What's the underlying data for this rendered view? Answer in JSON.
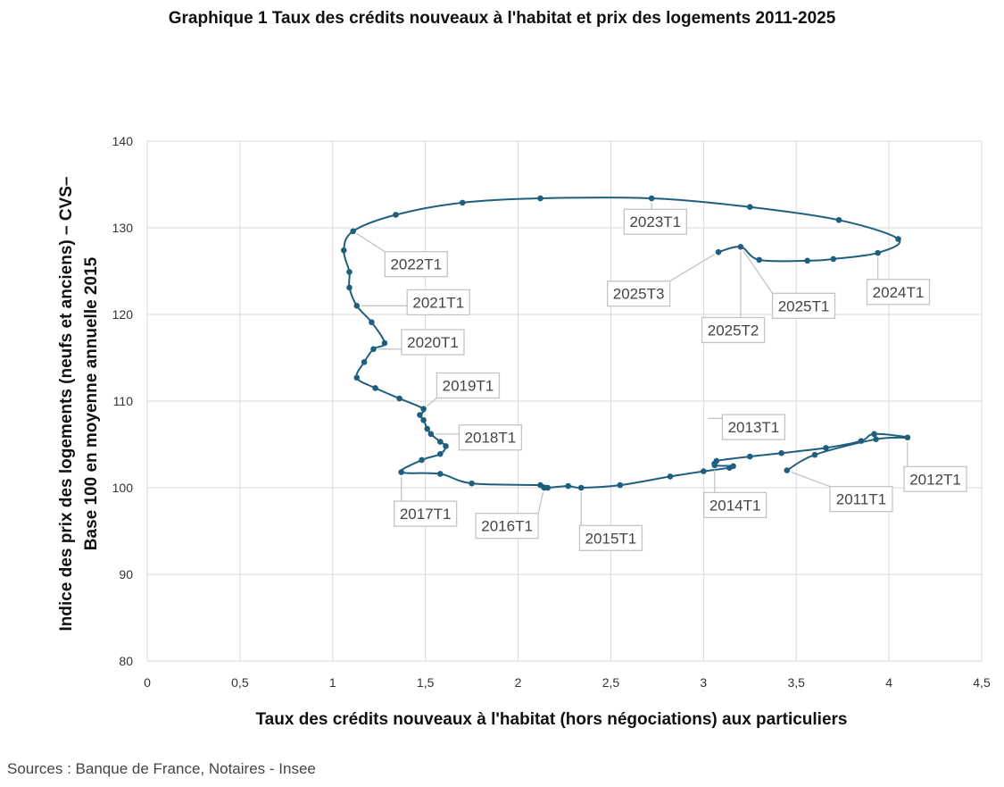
{
  "page": {
    "title": "Graphique 1 Taux des crédits nouveaux à l'habitat et prix des logements 2011-2025",
    "source": "Sources : Banque de France, Notaires - Insee"
  },
  "chart_data": {
    "type": "line",
    "xlabel": "Taux des crédits nouveaux à l'habitat (hors négociations) aux particuliers",
    "ylabel_lines": [
      "Indice des prix des logements (neufs et anciens) – CVS–",
      "Base 100 en moyenne annuelle 2015"
    ],
    "xlim": [
      0,
      4.5
    ],
    "ylim": [
      80,
      140
    ],
    "x_ticks": [
      0,
      0.5,
      1,
      1.5,
      2,
      2.5,
      3,
      3.5,
      4,
      4.5
    ],
    "x_tick_labels": [
      "0",
      "0,5",
      "1",
      "1,5",
      "2",
      "2,5",
      "3",
      "3,5",
      "4",
      "4,5"
    ],
    "y_ticks": [
      80,
      90,
      100,
      110,
      120,
      130,
      140
    ],
    "y_tick_labels": [
      "80",
      "90",
      "100",
      "110",
      "120",
      "130",
      "140"
    ],
    "grid": true,
    "line_color": "#1f5f7e",
    "points": [
      {
        "x": 3.45,
        "y": 102.0
      },
      {
        "x": 3.6,
        "y": 103.8
      },
      {
        "x": 3.93,
        "y": 105.6
      },
      {
        "x": 4.1,
        "y": 105.8
      },
      {
        "x": 3.92,
        "y": 106.2
      },
      {
        "x": 3.85,
        "y": 105.4
      },
      {
        "x": 3.66,
        "y": 104.6
      },
      {
        "x": 3.42,
        "y": 104.0
      },
      {
        "x": 3.25,
        "y": 103.6
      },
      {
        "x": 3.07,
        "y": 103.1
      },
      {
        "x": 3.06,
        "y": 102.6
      },
      {
        "x": 3.16,
        "y": 102.5
      },
      {
        "x": 3.14,
        "y": 102.3
      },
      {
        "x": 3.0,
        "y": 101.9
      },
      {
        "x": 2.82,
        "y": 101.3
      },
      {
        "x": 2.55,
        "y": 100.3
      },
      {
        "x": 2.34,
        "y": 100.0
      },
      {
        "x": 2.27,
        "y": 100.2
      },
      {
        "x": 2.16,
        "y": 100.0
      },
      {
        "x": 2.14,
        "y": 100.0
      },
      {
        "x": 2.12,
        "y": 100.3
      },
      {
        "x": 1.75,
        "y": 100.5
      },
      {
        "x": 1.58,
        "y": 101.6
      },
      {
        "x": 1.37,
        "y": 101.8
      },
      {
        "x": 1.48,
        "y": 103.2
      },
      {
        "x": 1.58,
        "y": 103.9
      },
      {
        "x": 1.61,
        "y": 104.8
      },
      {
        "x": 1.58,
        "y": 105.3
      },
      {
        "x": 1.53,
        "y": 106.2
      },
      {
        "x": 1.51,
        "y": 106.8
      },
      {
        "x": 1.49,
        "y": 107.8
      },
      {
        "x": 1.47,
        "y": 108.4
      },
      {
        "x": 1.49,
        "y": 109.1
      },
      {
        "x": 1.36,
        "y": 110.3
      },
      {
        "x": 1.23,
        "y": 111.5
      },
      {
        "x": 1.13,
        "y": 112.7
      },
      {
        "x": 1.17,
        "y": 114.5
      },
      {
        "x": 1.22,
        "y": 116.0
      },
      {
        "x": 1.28,
        "y": 116.7
      },
      {
        "x": 1.21,
        "y": 119.1
      },
      {
        "x": 1.13,
        "y": 121.0
      },
      {
        "x": 1.09,
        "y": 123.1
      },
      {
        "x": 1.09,
        "y": 124.9
      },
      {
        "x": 1.06,
        "y": 127.4
      },
      {
        "x": 1.11,
        "y": 129.6
      },
      {
        "x": 1.34,
        "y": 131.5
      },
      {
        "x": 1.7,
        "y": 132.9
      },
      {
        "x": 2.12,
        "y": 133.4
      },
      {
        "x": 2.72,
        "y": 133.4
      },
      {
        "x": 3.25,
        "y": 132.4
      },
      {
        "x": 3.73,
        "y": 130.9
      },
      {
        "x": 4.05,
        "y": 128.7
      },
      {
        "x": 3.94,
        "y": 127.1
      },
      {
        "x": 3.7,
        "y": 126.4
      },
      {
        "x": 3.56,
        "y": 126.2
      },
      {
        "x": 3.3,
        "y": 126.3
      },
      {
        "x": 3.2,
        "y": 127.8
      },
      {
        "x": 3.08,
        "y": 127.2
      }
    ],
    "annotations": [
      {
        "text": "2011T1",
        "x": 3.85,
        "y": 98.7,
        "ax": 3.45,
        "ay": 102.0
      },
      {
        "text": "2012T1",
        "x": 4.25,
        "y": 101.0,
        "ax": 4.1,
        "ay": 105.8
      },
      {
        "text": "2013T1",
        "x": 3.27,
        "y": 107.0,
        "ax": 3.0,
        "ay": 108.0
      },
      {
        "text": "2014T1",
        "x": 3.17,
        "y": 98.0,
        "ax": 3.06,
        "ay": 102.6
      },
      {
        "text": "2015T1",
        "x": 2.5,
        "y": 94.2,
        "ax": 2.34,
        "ay": 100.0
      },
      {
        "text": "2016T1",
        "x": 1.94,
        "y": 95.6,
        "ax": 2.14,
        "ay": 100.0
      },
      {
        "text": "2017T1",
        "x": 1.5,
        "y": 97.0,
        "ax": 1.37,
        "ay": 101.8
      },
      {
        "text": "2018T1",
        "x": 1.85,
        "y": 105.8,
        "ax": 1.53,
        "ay": 106.2
      },
      {
        "text": "2019T1",
        "x": 1.73,
        "y": 111.8,
        "ax": 1.49,
        "ay": 109.1
      },
      {
        "text": "2020T1",
        "x": 1.54,
        "y": 116.8,
        "ax": 1.22,
        "ay": 116.0
      },
      {
        "text": "2021T1",
        "x": 1.57,
        "y": 121.4,
        "ax": 1.13,
        "ay": 121.0
      },
      {
        "text": "2022T1",
        "x": 1.45,
        "y": 125.8,
        "ax": 1.11,
        "ay": 129.6
      },
      {
        "text": "2023T1",
        "x": 2.74,
        "y": 130.7,
        "ax": 2.72,
        "ay": 133.4
      },
      {
        "text": "2024T1",
        "x": 4.05,
        "y": 122.6,
        "ax": 3.94,
        "ay": 127.1
      },
      {
        "text": "2025T1",
        "x": 3.54,
        "y": 121.0,
        "ax": 3.2,
        "ay": 127.8
      },
      {
        "text": "2025T2",
        "x": 3.16,
        "y": 118.2,
        "ax": 3.2,
        "ay": 127.8
      },
      {
        "text": "2025T3",
        "x": 2.65,
        "y": 122.4,
        "ax": 3.08,
        "ay": 127.2
      }
    ]
  }
}
